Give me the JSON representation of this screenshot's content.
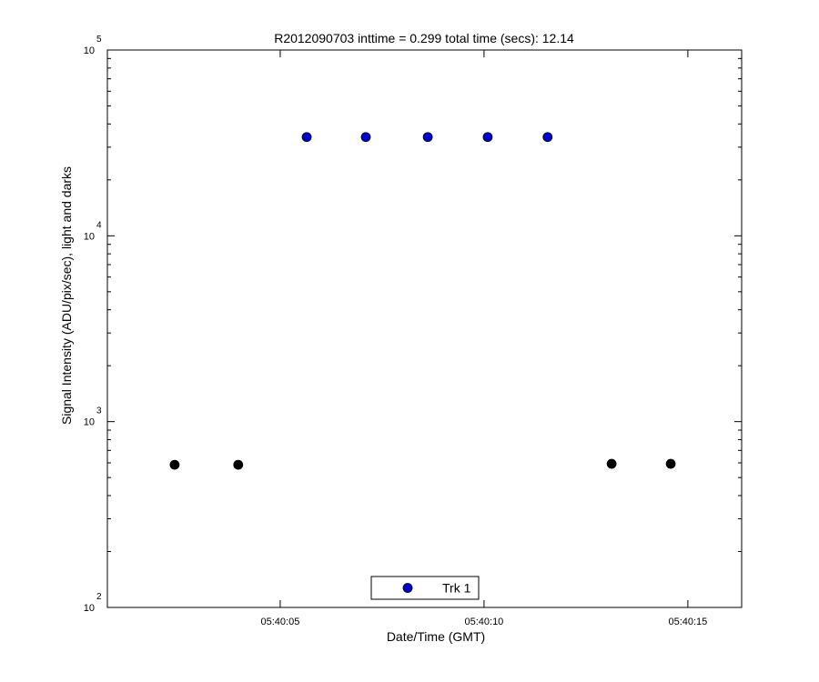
{
  "chart_data": {
    "type": "scatter",
    "title": "R2012090703 inttime = 0.299 total time (secs): 12.14",
    "xlabel": "Date/Time (GMT)",
    "ylabel": "Signal Intensity (ADU/pix/sec), light and darks",
    "yscale": "log",
    "xlim": [
      0.76,
      16.32
    ],
    "xticks": [
      {
        "value": 5,
        "label": "05:40:05"
      },
      {
        "value": 10,
        "label": "05:40:10"
      },
      {
        "value": 15,
        "label": "05:40:15"
      }
    ],
    "ylim": [
      100,
      100000
    ],
    "yticks": [
      {
        "value": 100,
        "label": "10",
        "exponent": "2"
      },
      {
        "value": 1000,
        "label": "10",
        "exponent": "3"
      },
      {
        "value": 10000,
        "label": "10",
        "exponent": "4"
      },
      {
        "value": 100000,
        "label": "10",
        "exponent": "5"
      }
    ],
    "legend": "bottom",
    "series": [
      {
        "name": "Trk 1",
        "color": "#0000cc",
        "x": [
          5.65,
          7.1,
          8.62,
          10.09,
          11.56
        ],
        "values": [
          34000,
          34000,
          34000,
          34000,
          34000
        ]
      },
      {
        "color": "#000000",
        "x": [
          2.41,
          3.97,
          13.13,
          14.58
        ],
        "values": [
          586,
          586,
          593,
          593
        ]
      }
    ]
  }
}
